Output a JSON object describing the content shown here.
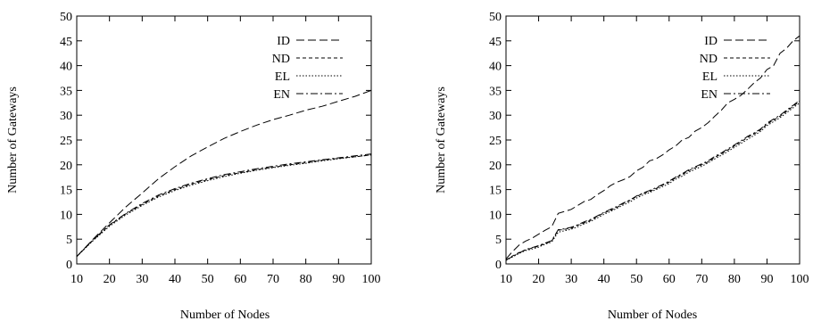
{
  "chart_data": [
    {
      "type": "line",
      "xlabel": "Number of Nodes",
      "ylabel": "Number of Gateways",
      "xlim": [
        10,
        100
      ],
      "ylim": [
        0,
        50
      ],
      "xticks": [
        10,
        20,
        30,
        40,
        50,
        60,
        70,
        80,
        90,
        100
      ],
      "yticks": [
        0,
        5,
        10,
        15,
        20,
        25,
        30,
        35,
        40,
        45,
        50
      ],
      "grid": false,
      "legend": "top-right",
      "x": [
        10,
        15,
        20,
        25,
        30,
        35,
        40,
        45,
        50,
        55,
        60,
        65,
        70,
        75,
        80,
        85,
        90,
        95,
        100
      ],
      "series": [
        {
          "name": "ID",
          "dash": "9,4",
          "values": [
            1.5,
            5.0,
            8.3,
            11.5,
            14.3,
            17.2,
            19.6,
            21.8,
            23.6,
            25.3,
            26.7,
            28.0,
            29.1,
            30.0,
            31.0,
            31.8,
            32.8,
            33.8,
            35.0
          ]
        },
        {
          "name": "ND",
          "dash": "4,3",
          "values": [
            1.5,
            4.8,
            7.8,
            10.1,
            12.0,
            13.7,
            15.0,
            16.1,
            17.0,
            17.8,
            18.4,
            19.0,
            19.5,
            20.0,
            20.4,
            20.9,
            21.3,
            21.6,
            22.0
          ]
        },
        {
          "name": "EL",
          "dash": "1.5,2",
          "values": [
            1.5,
            4.7,
            7.6,
            9.9,
            11.8,
            13.5,
            14.8,
            15.9,
            16.8,
            17.6,
            18.3,
            18.9,
            19.4,
            19.9,
            20.3,
            20.8,
            21.2,
            21.6,
            22.0
          ]
        },
        {
          "name": "EN",
          "dash": "8,3,2,3",
          "values": [
            1.5,
            4.9,
            7.9,
            10.2,
            12.2,
            13.9,
            15.2,
            16.3,
            17.2,
            18.0,
            18.6,
            19.2,
            19.7,
            20.2,
            20.6,
            21.0,
            21.4,
            21.8,
            22.2
          ]
        }
      ]
    },
    {
      "type": "line",
      "xlabel": "Number of Nodes",
      "ylabel": "Number of Gateways",
      "xlim": [
        10,
        100
      ],
      "ylim": [
        0,
        50
      ],
      "xticks": [
        10,
        20,
        30,
        40,
        50,
        60,
        70,
        80,
        90,
        100
      ],
      "yticks": [
        0,
        5,
        10,
        15,
        20,
        25,
        30,
        35,
        40,
        45,
        50
      ],
      "grid": false,
      "legend": "top-right",
      "x": [
        10,
        12,
        14,
        16,
        18,
        20,
        22,
        24,
        26,
        28,
        30,
        32,
        34,
        36,
        38,
        40,
        42,
        44,
        46,
        48,
        50,
        52,
        54,
        56,
        58,
        60,
        62,
        64,
        66,
        68,
        70,
        72,
        74,
        76,
        78,
        80,
        82,
        84,
        86,
        88,
        90,
        92,
        94,
        96,
        98,
        100
      ],
      "series": [
        {
          "name": "ID",
          "dash": "9,4",
          "values": [
            1.0,
            2.5,
            3.8,
            4.6,
            5.2,
            6.0,
            6.8,
            7.5,
            10.2,
            10.6,
            11.0,
            11.8,
            12.6,
            13.0,
            14.0,
            14.8,
            15.8,
            16.5,
            17.0,
            17.6,
            18.8,
            19.5,
            20.8,
            21.2,
            22.0,
            23.0,
            23.8,
            25.0,
            25.5,
            26.8,
            27.5,
            28.5,
            29.8,
            31.0,
            32.5,
            33.2,
            34.0,
            35.2,
            36.5,
            37.5,
            39.2,
            40.0,
            42.5,
            43.5,
            45.0,
            46.0
          ]
        },
        {
          "name": "ND",
          "dash": "4,3",
          "values": [
            0.8,
            1.6,
            2.3,
            2.8,
            3.2,
            3.6,
            4.1,
            4.6,
            6.8,
            7.0,
            7.2,
            7.8,
            8.3,
            8.8,
            9.6,
            10.3,
            10.8,
            11.4,
            12.2,
            12.8,
            13.6,
            14.2,
            14.6,
            15.2,
            15.9,
            16.5,
            17.4,
            18.0,
            18.8,
            19.4,
            20.0,
            20.6,
            21.5,
            22.2,
            23.0,
            23.8,
            24.6,
            25.5,
            26.2,
            27.0,
            28.2,
            29.0,
            29.8,
            30.8,
            31.8,
            32.8
          ]
        },
        {
          "name": "EL",
          "dash": "1.5,2",
          "values": [
            0.7,
            1.4,
            2.1,
            2.7,
            3.0,
            3.4,
            4.0,
            4.4,
            6.4,
            6.7,
            7.0,
            7.5,
            8.1,
            8.6,
            9.3,
            10.0,
            10.6,
            11.2,
            11.9,
            12.5,
            13.3,
            13.9,
            14.4,
            15.0,
            15.6,
            16.2,
            17.1,
            17.7,
            18.5,
            19.1,
            19.7,
            20.4,
            21.2,
            21.9,
            22.7,
            23.5,
            24.3,
            25.1,
            25.9,
            26.7,
            27.9,
            28.7,
            29.5,
            30.5,
            31.5,
            32.5
          ]
        },
        {
          "name": "EN",
          "dash": "8,3,2,3",
          "values": [
            0.8,
            1.5,
            2.2,
            2.9,
            3.3,
            3.7,
            4.2,
            4.7,
            6.9,
            7.1,
            7.4,
            7.9,
            8.5,
            9.0,
            9.7,
            10.4,
            11.0,
            11.6,
            12.3,
            12.9,
            13.7,
            14.3,
            14.8,
            15.4,
            16.0,
            16.7,
            17.5,
            18.2,
            19.0,
            19.6,
            20.2,
            20.8,
            21.7,
            22.4,
            23.2,
            24.0,
            24.8,
            25.7,
            26.4,
            27.2,
            28.4,
            29.2,
            30.0,
            31.0,
            32.0,
            33.0
          ]
        }
      ]
    }
  ]
}
